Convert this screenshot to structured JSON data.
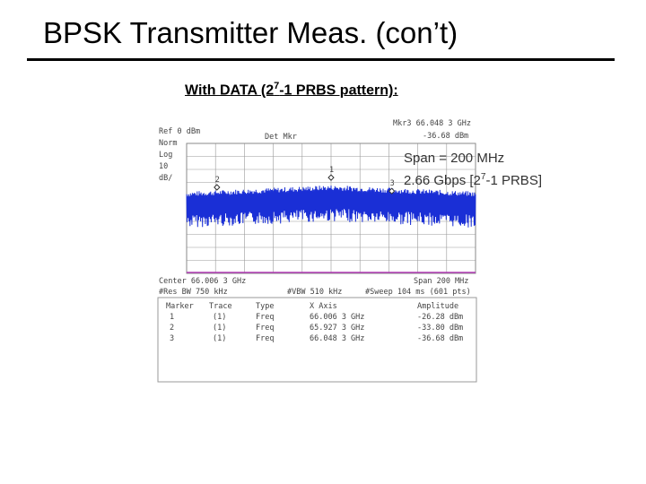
{
  "slide": {
    "title": "BPSK Transmitter Meas. (con’t)",
    "subtitle_pre": "With DATA (2",
    "subtitle_exp": "7",
    "subtitle_post": "-1 PRBS pattern):"
  },
  "analyzer": {
    "ref_level": "Ref 0 dBm",
    "mode": "Norm",
    "scale_type": "Log",
    "scale_value": "10",
    "scale_unit": "dB/",
    "detector": "Det Mkr",
    "mkr_readout_freq": "Mkr3 66.048 3 GHz",
    "mkr_readout_amp": "-36.68 dBm",
    "center": "Center 66.006 3 GHz",
    "span": "Span 200 MHz",
    "res_bw": "#Res BW 750 kHz",
    "vbw": "#VBW 510 kHz",
    "sweep": "#Sweep 104 ms (601 pts)",
    "annotation": {
      "span_line": "Span = 200 MHz",
      "rate_pre": "2.66 Gbps [2",
      "rate_exp": "7",
      "rate_post": "-1 PRBS]"
    },
    "marker_table": {
      "headers": [
        "Marker",
        "Trace",
        "Type",
        "X Axis",
        "Amplitude"
      ],
      "rows": [
        [
          "1",
          "(1)",
          "Freq",
          "66.006 3 GHz",
          "-26.28 dBm"
        ],
        [
          "2",
          "(1)",
          "Freq",
          "65.927 3 GHz",
          "-33.80 dBm"
        ],
        [
          "3",
          "(1)",
          "Freq",
          "66.048 3 GHz",
          "-36.68 dBm"
        ]
      ]
    },
    "markers": [
      {
        "label": "1",
        "freq_ghz": 66.0063,
        "amp_dbm": -26.28
      },
      {
        "label": "2",
        "freq_ghz": 65.9273,
        "amp_dbm": -33.8
      },
      {
        "label": "3",
        "freq_ghz": 66.0483,
        "amp_dbm": -36.68
      }
    ],
    "colors": {
      "trace": "#1a2fd6",
      "display_line": "#b23bb5",
      "grid": "#9a9a9a"
    }
  }
}
